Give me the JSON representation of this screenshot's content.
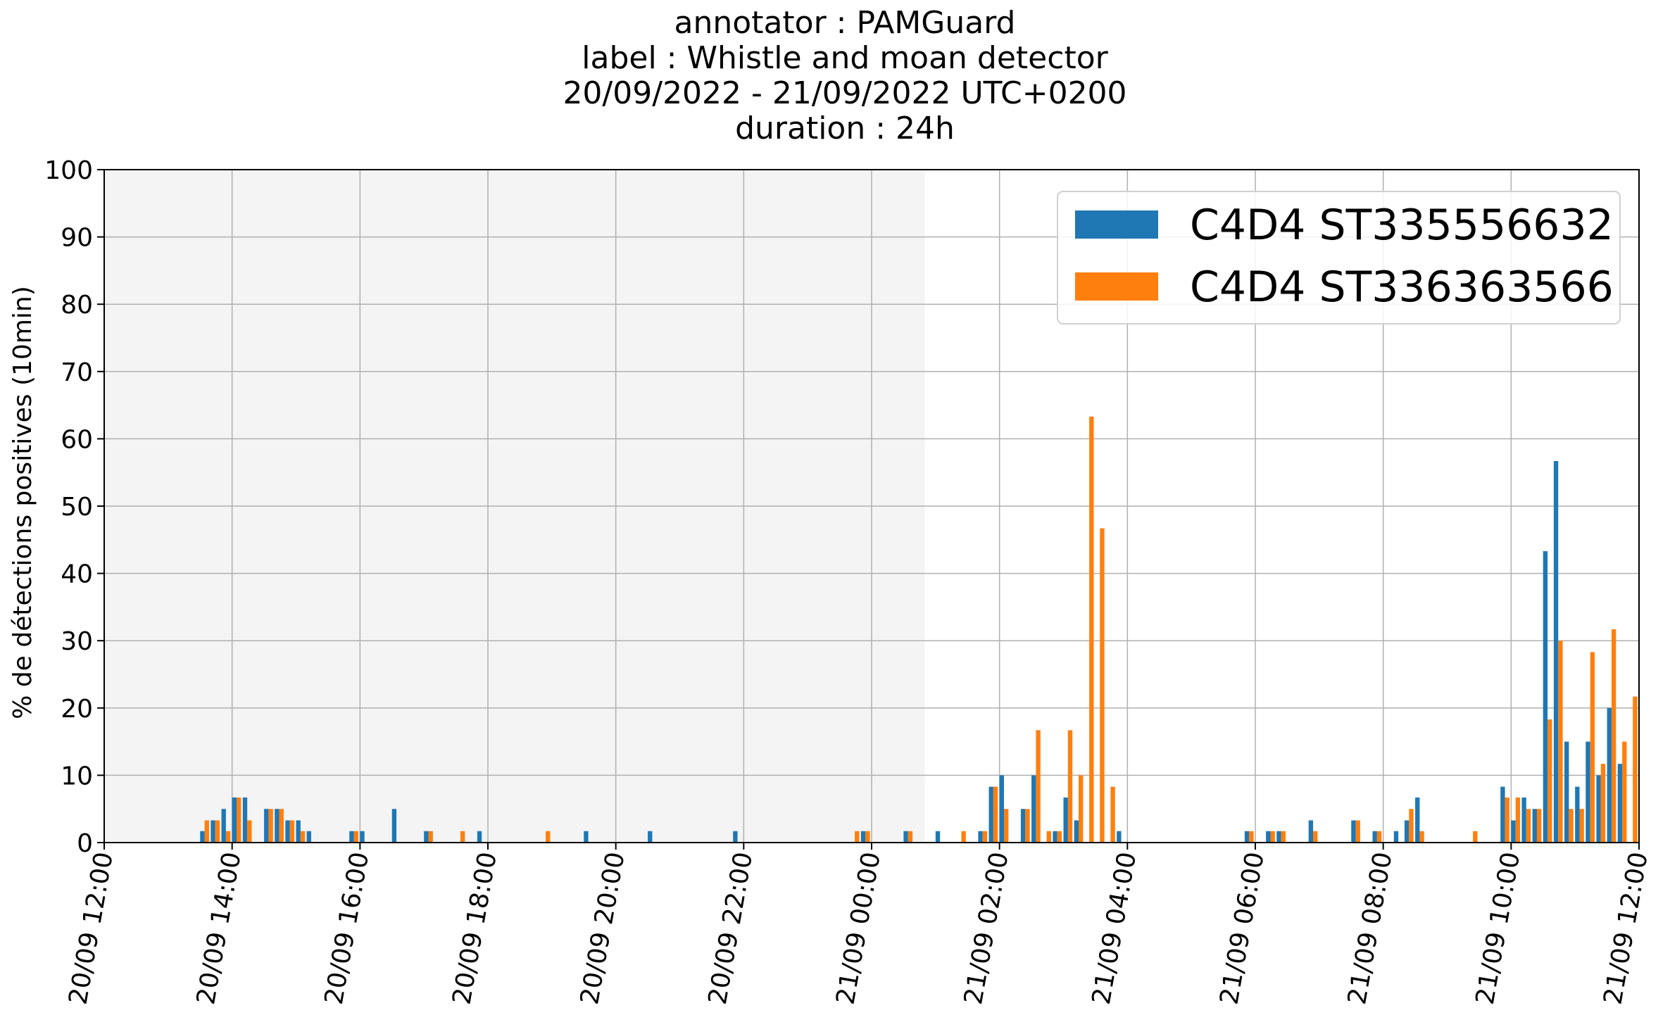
{
  "chart_data": {
    "type": "bar",
    "title_lines": [
      "annotator : PAMGuard",
      "label : Whistle and moan detector",
      "20/09/2022 - 21/09/2022 UTC+0200",
      "duration : 24h"
    ],
    "xlabel": "",
    "ylabel": "% de détections positives (10min)",
    "ylim": [
      0,
      100
    ],
    "yticks": [
      0,
      10,
      20,
      30,
      40,
      50,
      60,
      70,
      80,
      90,
      100
    ],
    "x_start": "2022-09-20T12:00",
    "x_end": "2022-09-21T12:00",
    "xticks": [
      {
        "time": "2022-09-20T12:00",
        "label": "20/09 12:00"
      },
      {
        "time": "2022-09-20T14:00",
        "label": "20/09 14:00"
      },
      {
        "time": "2022-09-20T16:00",
        "label": "20/09 16:00"
      },
      {
        "time": "2022-09-20T18:00",
        "label": "20/09 18:00"
      },
      {
        "time": "2022-09-20T20:00",
        "label": "20/09 20:00"
      },
      {
        "time": "2022-09-20T22:00",
        "label": "20/09 22:00"
      },
      {
        "time": "2022-09-21T00:00",
        "label": "21/09 00:00"
      },
      {
        "time": "2022-09-21T02:00",
        "label": "21/09 02:00"
      },
      {
        "time": "2022-09-21T04:00",
        "label": "21/09 04:00"
      },
      {
        "time": "2022-09-21T06:00",
        "label": "21/09 06:00"
      },
      {
        "time": "2022-09-21T08:00",
        "label": "21/09 08:00"
      },
      {
        "time": "2022-09-21T10:00",
        "label": "21/09 10:00"
      },
      {
        "time": "2022-09-21T12:00",
        "label": "21/09 12:00"
      }
    ],
    "grid": true,
    "legend_position": "top-right",
    "shaded_region": {
      "from": "2022-09-20T12:00",
      "to": "2022-09-21T00:50",
      "color": "#f4f4f4"
    },
    "series": [
      {
        "name": "C4D4 ST335556632",
        "color": "#1f77b4",
        "points": [
          [
            "2022-09-20T13:30",
            1.7
          ],
          [
            "2022-09-20T13:40",
            3.3
          ],
          [
            "2022-09-20T13:50",
            5.0
          ],
          [
            "2022-09-20T14:00",
            6.7
          ],
          [
            "2022-09-20T14:10",
            6.7
          ],
          [
            "2022-09-20T14:30",
            5.0
          ],
          [
            "2022-09-20T14:40",
            5.0
          ],
          [
            "2022-09-20T14:50",
            3.3
          ],
          [
            "2022-09-20T15:00",
            3.3
          ],
          [
            "2022-09-20T15:10",
            1.7
          ],
          [
            "2022-09-20T15:50",
            1.7
          ],
          [
            "2022-09-20T16:00",
            1.7
          ],
          [
            "2022-09-20T16:30",
            5.0
          ],
          [
            "2022-09-20T17:00",
            1.7
          ],
          [
            "2022-09-20T17:50",
            1.7
          ],
          [
            "2022-09-20T19:30",
            1.7
          ],
          [
            "2022-09-20T20:30",
            1.7
          ],
          [
            "2022-09-20T21:50",
            1.7
          ],
          [
            "2022-09-20T23:50",
            1.7
          ],
          [
            "2022-09-21T00:30",
            1.7
          ],
          [
            "2022-09-21T01:00",
            1.7
          ],
          [
            "2022-09-21T01:40",
            1.7
          ],
          [
            "2022-09-21T01:50",
            8.3
          ],
          [
            "2022-09-21T02:00",
            10.0
          ],
          [
            "2022-09-21T02:20",
            5.0
          ],
          [
            "2022-09-21T02:30",
            10.0
          ],
          [
            "2022-09-21T02:50",
            1.7
          ],
          [
            "2022-09-21T03:00",
            6.7
          ],
          [
            "2022-09-21T03:10",
            3.3
          ],
          [
            "2022-09-21T03:50",
            1.7
          ],
          [
            "2022-09-21T05:50",
            1.7
          ],
          [
            "2022-09-21T06:10",
            1.7
          ],
          [
            "2022-09-21T06:20",
            1.7
          ],
          [
            "2022-09-21T06:50",
            3.3
          ],
          [
            "2022-09-21T07:30",
            3.3
          ],
          [
            "2022-09-21T07:50",
            1.7
          ],
          [
            "2022-09-21T08:10",
            1.7
          ],
          [
            "2022-09-21T08:20",
            3.3
          ],
          [
            "2022-09-21T08:30",
            6.7
          ],
          [
            "2022-09-21T09:50",
            8.3
          ],
          [
            "2022-09-21T10:00",
            3.3
          ],
          [
            "2022-09-21T10:10",
            6.7
          ],
          [
            "2022-09-21T10:20",
            5.0
          ],
          [
            "2022-09-21T10:30",
            43.3
          ],
          [
            "2022-09-21T10:40",
            56.7
          ],
          [
            "2022-09-21T10:50",
            15.0
          ],
          [
            "2022-09-21T11:00",
            8.3
          ],
          [
            "2022-09-21T11:10",
            15.0
          ],
          [
            "2022-09-21T11:20",
            10.0
          ],
          [
            "2022-09-21T11:30",
            20.0
          ],
          [
            "2022-09-21T11:40",
            11.7
          ]
        ]
      },
      {
        "name": "C4D4 ST336363566",
        "color": "#ff7f0e",
        "points": [
          [
            "2022-09-20T13:30",
            3.3
          ],
          [
            "2022-09-20T13:40",
            3.3
          ],
          [
            "2022-09-20T13:50",
            1.7
          ],
          [
            "2022-09-20T14:00",
            6.7
          ],
          [
            "2022-09-20T14:10",
            3.3
          ],
          [
            "2022-09-20T14:30",
            5.0
          ],
          [
            "2022-09-20T14:40",
            5.0
          ],
          [
            "2022-09-20T14:50",
            3.3
          ],
          [
            "2022-09-20T15:00",
            1.7
          ],
          [
            "2022-09-20T15:50",
            1.7
          ],
          [
            "2022-09-20T17:00",
            1.7
          ],
          [
            "2022-09-20T17:30",
            1.7
          ],
          [
            "2022-09-20T18:50",
            1.7
          ],
          [
            "2022-09-20T23:40",
            1.7
          ],
          [
            "2022-09-20T23:50",
            1.7
          ],
          [
            "2022-09-21T00:30",
            1.7
          ],
          [
            "2022-09-21T01:20",
            1.7
          ],
          [
            "2022-09-21T01:40",
            1.7
          ],
          [
            "2022-09-21T01:50",
            8.3
          ],
          [
            "2022-09-21T02:00",
            5.0
          ],
          [
            "2022-09-21T02:20",
            5.0
          ],
          [
            "2022-09-21T02:30",
            16.7
          ],
          [
            "2022-09-21T02:40",
            1.7
          ],
          [
            "2022-09-21T02:50",
            1.7
          ],
          [
            "2022-09-21T03:00",
            16.7
          ],
          [
            "2022-09-21T03:10",
            10.0
          ],
          [
            "2022-09-21T03:20",
            63.3
          ],
          [
            "2022-09-21T03:30",
            46.7
          ],
          [
            "2022-09-21T03:40",
            8.3
          ],
          [
            "2022-09-21T05:50",
            1.7
          ],
          [
            "2022-09-21T06:10",
            1.7
          ],
          [
            "2022-09-21T06:20",
            1.7
          ],
          [
            "2022-09-21T06:50",
            1.7
          ],
          [
            "2022-09-21T07:30",
            3.3
          ],
          [
            "2022-09-21T07:50",
            1.7
          ],
          [
            "2022-09-21T08:20",
            5.0
          ],
          [
            "2022-09-21T08:30",
            1.7
          ],
          [
            "2022-09-21T09:20",
            1.7
          ],
          [
            "2022-09-21T09:50",
            6.7
          ],
          [
            "2022-09-21T10:00",
            6.7
          ],
          [
            "2022-09-21T10:10",
            5.0
          ],
          [
            "2022-09-21T10:20",
            5.0
          ],
          [
            "2022-09-21T10:30",
            18.3
          ],
          [
            "2022-09-21T10:40",
            30.0
          ],
          [
            "2022-09-21T10:50",
            5.0
          ],
          [
            "2022-09-21T11:00",
            5.0
          ],
          [
            "2022-09-21T11:10",
            28.3
          ],
          [
            "2022-09-21T11:20",
            11.7
          ],
          [
            "2022-09-21T11:30",
            31.7
          ],
          [
            "2022-09-21T11:40",
            15.0
          ],
          [
            "2022-09-21T11:50",
            21.7
          ]
        ]
      }
    ]
  }
}
